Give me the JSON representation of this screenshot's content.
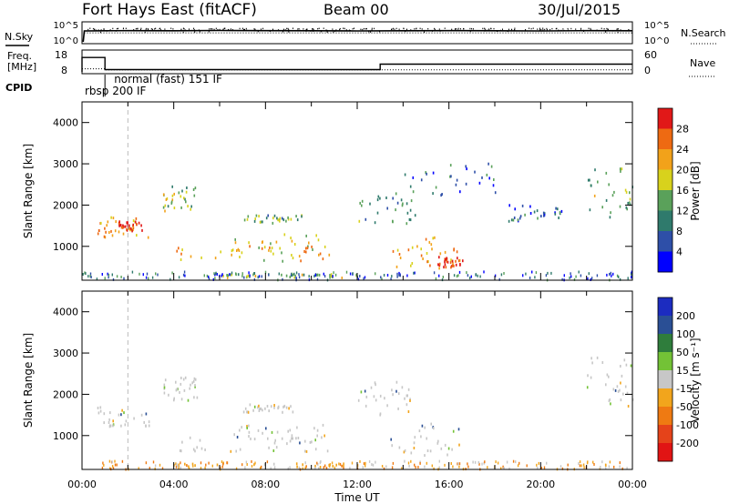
{
  "header": {
    "station": "Fort Hays East (fitACF)",
    "beam": "Beam 00",
    "date": "30/Jul/2015"
  },
  "chart_data": [
    {
      "panel": "noise",
      "type": "line",
      "left_label": "N.Sky",
      "right_label": "N.Search",
      "y_ticks_left": [
        "10^5",
        "10^0"
      ],
      "y_ticks_right": [
        "10^5",
        "10^0"
      ],
      "scale": "log",
      "series": [
        {
          "style": "solid-dots",
          "x_hours": [
            0.05,
            0.1,
            1.0,
            2.0,
            4.0,
            6.0,
            8.0,
            10.0,
            12.0,
            14.0,
            16.0,
            18.0,
            20.0,
            22.0,
            24.0
          ],
          "values": [
            1,
            1000,
            1100,
            1200,
            1100,
            1300,
            1200,
            1100,
            1000,
            1100,
            1200,
            1100,
            1000,
            1200,
            1100
          ]
        },
        {
          "style": "dotted",
          "x_hours": [
            0.1,
            24.0
          ],
          "values": [
            300,
            300
          ]
        }
      ]
    },
    {
      "panel": "freq-nave",
      "type": "line",
      "left_label_lines": [
        "Freq.",
        "[MHz]"
      ],
      "right_label": "Nave",
      "y_ticks_left": [
        "18",
        "8"
      ],
      "y_ticks_right": [
        "60",
        "0"
      ],
      "series": [
        {
          "name": "Freq. [MHz]",
          "x_hours": [
            0.0,
            0.0,
            1.0,
            1.0,
            13.0,
            13.0,
            24.0
          ],
          "values": [
            8,
            17.3,
            17.3,
            9.5,
            9.5,
            13.0,
            13.0
          ]
        },
        {
          "name": "Nave",
          "x_hours": [
            0.0,
            1.0,
            1.0,
            24.0
          ],
          "values": [
            12,
            12,
            8,
            8
          ]
        }
      ]
    },
    {
      "panel": "cpid",
      "type": "table",
      "label": "CPID",
      "entries": [
        {
          "text": "rbsp  200  IF",
          "start_hour": 0.0
        },
        {
          "text": "normal (fast)  151  IF",
          "start_hour": 1.0
        }
      ]
    },
    {
      "panel": "power",
      "type": "heatmap",
      "ylabel": "Slant Range [km]",
      "y_ticks": [
        1000,
        2000,
        3000,
        4000
      ],
      "ylim": [
        180,
        4500
      ],
      "x_ticks_hours": [
        0,
        2,
        4,
        6,
        8,
        10,
        12,
        14,
        16,
        18,
        20,
        22,
        24
      ],
      "colorbar_label": "Power [dB]",
      "colorbar_ticks": [
        4,
        8,
        12,
        16,
        20,
        24,
        28
      ],
      "colorbar_colors": [
        "#0000ff",
        "#2e4fa8",
        "#2f7a6c",
        "#5aa15a",
        "#d8d21c",
        "#f2a21a",
        "#ee6a12",
        "#e11818"
      ],
      "regions": [
        {
          "t0": 0.6,
          "t1": 2.9,
          "r0": 1200,
          "r1": 1700,
          "weight": 0.75
        },
        {
          "t0": 1.5,
          "t1": 2.6,
          "r0": 1350,
          "r1": 1600,
          "weight": 0.95
        },
        {
          "t0": 3.5,
          "t1": 5.0,
          "r0": 1850,
          "r1": 2450,
          "weight": 0.45
        },
        {
          "t0": 3.9,
          "t1": 10.8,
          "r0": 600,
          "r1": 1000,
          "weight": 0.7
        },
        {
          "t0": 6.5,
          "t1": 10.8,
          "r0": 800,
          "r1": 1300,
          "weight": 0.6
        },
        {
          "t0": 7.0,
          "t1": 9.6,
          "r0": 1550,
          "r1": 1750,
          "weight": 0.4
        },
        {
          "t0": 6.0,
          "t1": 12.0,
          "r0": 200,
          "r1": 320,
          "weight": 0.5
        },
        {
          "t0": 12.0,
          "t1": 14.5,
          "r0": 1500,
          "r1": 2300,
          "weight": 0.3
        },
        {
          "t0": 13.4,
          "t1": 16.6,
          "r0": 500,
          "r1": 1300,
          "weight": 0.7
        },
        {
          "t0": 15.5,
          "t1": 16.6,
          "r0": 450,
          "r1": 750,
          "weight": 0.95
        },
        {
          "t0": 14.0,
          "t1": 18.0,
          "r0": 2200,
          "r1": 3000,
          "weight": 0.2
        },
        {
          "t0": 22.0,
          "t1": 24.0,
          "r0": 1700,
          "r1": 2900,
          "weight": 0.45
        },
        {
          "t0": 18.5,
          "t1": 21.0,
          "r0": 1600,
          "r1": 2000,
          "weight": 0.2
        }
      ]
    },
    {
      "panel": "velocity",
      "type": "heatmap",
      "ylabel": "Slant Range [km]",
      "y_ticks": [
        1000,
        2000,
        3000,
        4000
      ],
      "ylim": [
        180,
        4500
      ],
      "x_ticks_hours": [
        0,
        2,
        4,
        6,
        8,
        10,
        12,
        14,
        16,
        18,
        20,
        22,
        24
      ],
      "x_tick_labels": [
        "00:00",
        "04:00",
        "08:00",
        "12:00",
        "16:00",
        "20:00",
        "00:00"
      ],
      "xlabel": "Time UT",
      "colorbar_label": "Velocity [m s⁻¹]",
      "colorbar_ticks": [
        200,
        100,
        50,
        15,
        -15,
        -50,
        -100,
        -200
      ],
      "colorbar_colors": [
        "#1c2cc0",
        "#2a4f95",
        "#2f7d3c",
        "#73c236",
        "#c7c7c7",
        "#f2a51c",
        "#ef7a12",
        "#e5431a",
        "#e11414"
      ],
      "regions": [
        {
          "t0": 0.6,
          "t1": 2.9,
          "r0": 1200,
          "r1": 1700,
          "weight": 0.5
        },
        {
          "t0": 3.5,
          "t1": 5.0,
          "r0": 1850,
          "r1": 2450,
          "weight": 0.3
        },
        {
          "t0": 3.9,
          "t1": 10.8,
          "r0": 600,
          "r1": 1000,
          "weight": 0.5
        },
        {
          "t0": 6.5,
          "t1": 10.8,
          "r0": 800,
          "r1": 1300,
          "weight": 0.5
        },
        {
          "t0": 7.0,
          "t1": 9.6,
          "r0": 1550,
          "r1": 1750,
          "weight": 0.4
        },
        {
          "t0": 4.0,
          "t1": 12.0,
          "r0": 200,
          "r1": 320,
          "weight": 0.85
        },
        {
          "t0": 12.0,
          "t1": 14.5,
          "r0": 1500,
          "r1": 2300,
          "weight": 0.5
        },
        {
          "t0": 13.4,
          "t1": 16.6,
          "r0": 500,
          "r1": 1300,
          "weight": 0.5
        },
        {
          "t0": 22.0,
          "t1": 24.0,
          "r0": 1700,
          "r1": 2900,
          "weight": 0.5
        }
      ]
    }
  ]
}
